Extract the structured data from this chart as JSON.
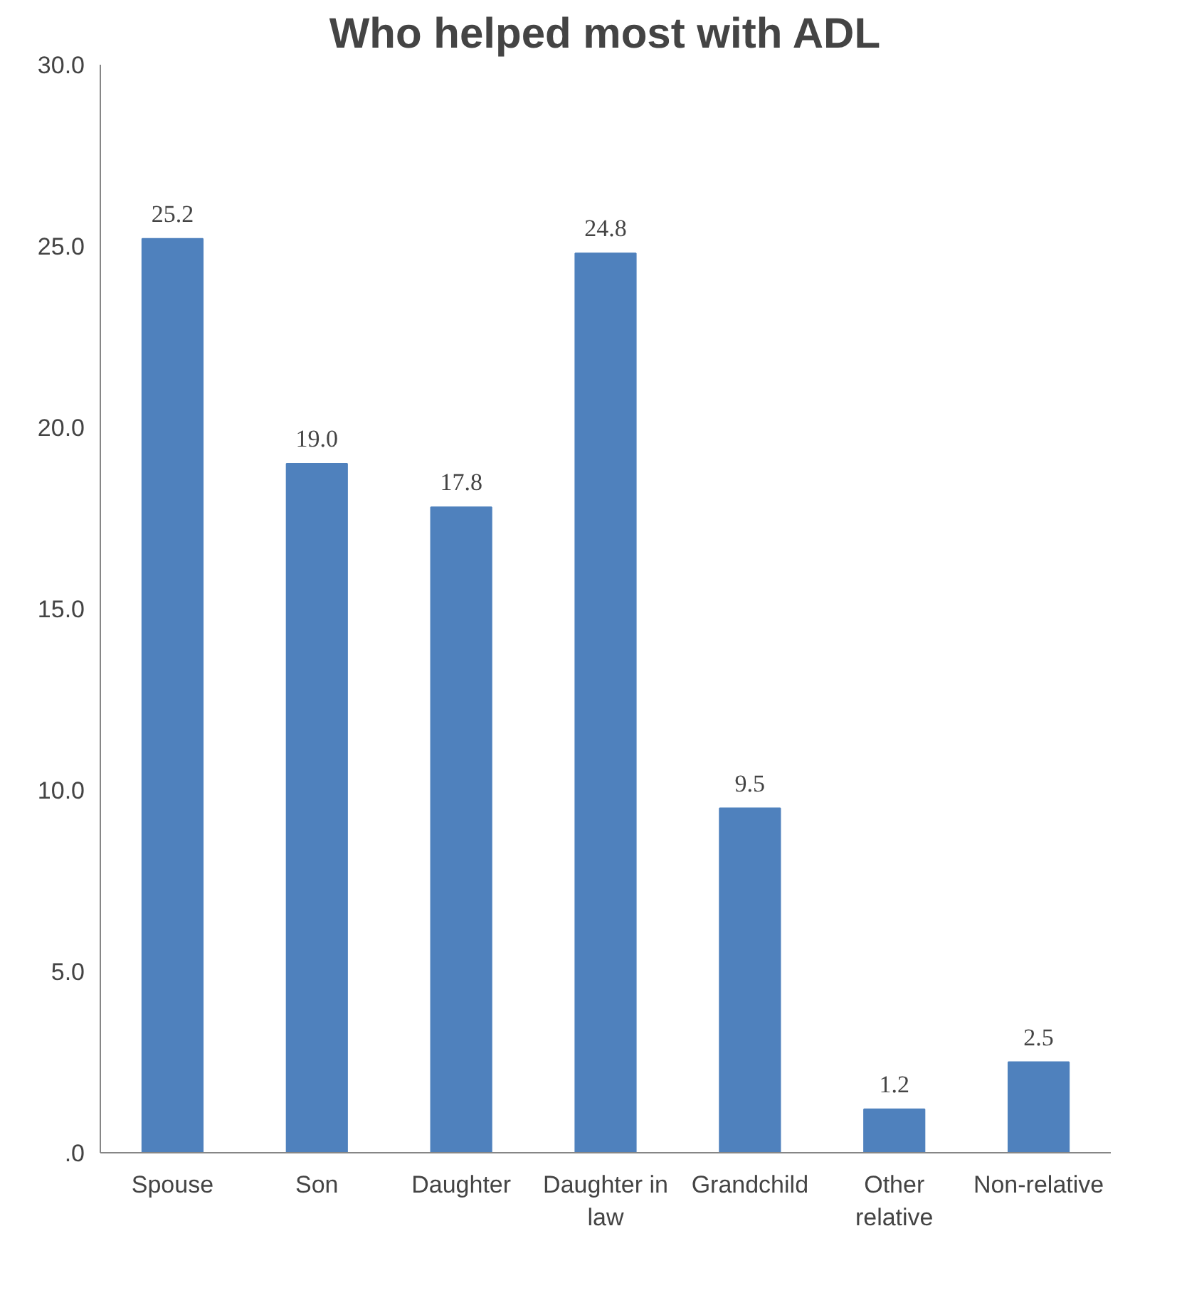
{
  "chart_data": {
    "type": "bar",
    "title": "Who helped most with ADL",
    "categories": [
      "Spouse",
      "Son",
      "Daughter",
      "Daughter in law",
      "Grandchild",
      "Other relative",
      "Non-relative"
    ],
    "values": [
      25.2,
      19.0,
      17.8,
      24.8,
      9.5,
      1.2,
      2.5
    ],
    "value_labels": [
      "25.2",
      "19.0",
      "17.8",
      "24.8",
      "9.5",
      "1.2",
      "2.5"
    ],
    "color": "#4f81bd",
    "ylim": [
      0,
      30
    ],
    "yticks": [
      {
        "value": 0,
        "label": ".0"
      },
      {
        "value": 5,
        "label": "5.0"
      },
      {
        "value": 10,
        "label": "10.0"
      },
      {
        "value": 15,
        "label": "15.0"
      },
      {
        "value": 20,
        "label": "20.0"
      },
      {
        "value": 25,
        "label": "25.0"
      },
      {
        "value": 30,
        "label": "30.0"
      }
    ],
    "grid": false
  }
}
